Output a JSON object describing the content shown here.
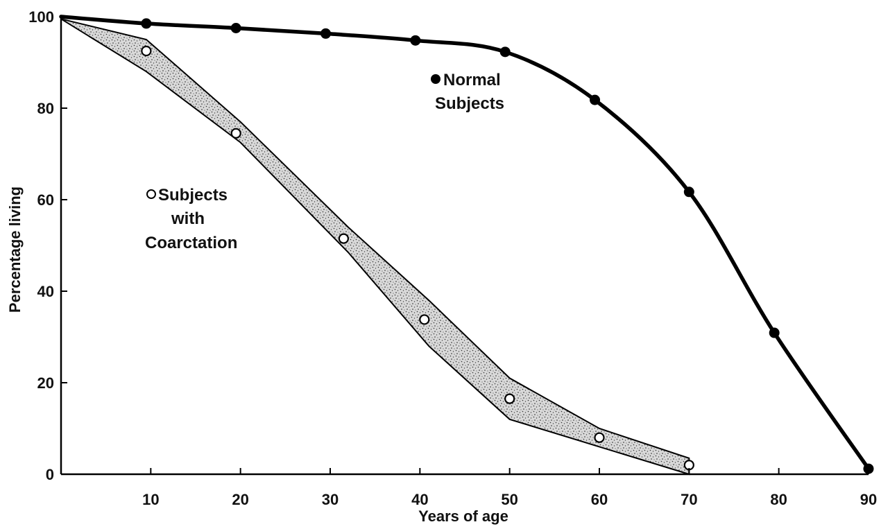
{
  "chart_data": {
    "type": "line",
    "title": "",
    "xlabel": "Years of age",
    "ylabel": "Percentage living",
    "xlim": [
      0,
      90
    ],
    "ylim": [
      0,
      100
    ],
    "x_ticks": [
      10,
      20,
      30,
      40,
      50,
      60,
      70,
      80,
      90
    ],
    "y_ticks": [
      0,
      20,
      40,
      60,
      80,
      100
    ],
    "grid": false,
    "series": [
      {
        "name": "Normal Subjects",
        "legend_lines": [
          "Normal",
          "Subjects"
        ],
        "marker": "filled-circle",
        "color": "#000000",
        "x": [
          9.5,
          19.5,
          29.5,
          39.5,
          49.5,
          59.5,
          70,
          79.5,
          90
        ],
        "y": [
          98.5,
          97.5,
          96.3,
          94.8,
          92.3,
          81.8,
          61.7,
          30.9,
          1.2
        ]
      },
      {
        "name": "Subjects with Coarctation",
        "legend_lines": [
          "Subjects",
          "with",
          "Coarctation"
        ],
        "marker": "open-circle",
        "color": "#000000",
        "band_fill": "#8c8c8c",
        "x": [
          9.5,
          19.5,
          31.5,
          40.5,
          50,
          60,
          70
        ],
        "y": [
          92.5,
          74.5,
          51.5,
          33.8,
          16.5,
          8,
          2
        ],
        "band": {
          "x": [
            0,
            9.5,
            20,
            32,
            41,
            50,
            60,
            70
          ],
          "upper": [
            99.5,
            95,
            77,
            54,
            38,
            21,
            10,
            3.5
          ],
          "lower": [
            99.5,
            88,
            72.5,
            48.5,
            28,
            12,
            6,
            0
          ]
        }
      }
    ]
  }
}
